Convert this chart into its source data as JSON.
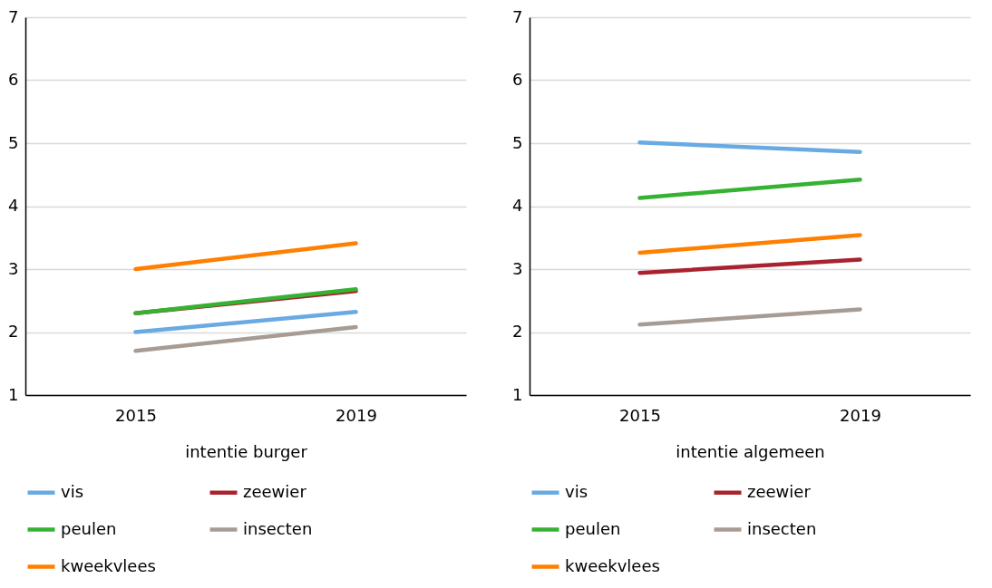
{
  "chart_data": [
    {
      "type": "line",
      "xlabel": "intentie burger",
      "categories": [
        "2015",
        "2019"
      ],
      "ylim": [
        1,
        7
      ],
      "yticks": [
        1,
        2,
        3,
        4,
        5,
        6,
        7
      ],
      "grid": "y",
      "legend": "bottom",
      "line_style": "solid",
      "marker": "none",
      "series": [
        {
          "name": "vis",
          "color": "#69aae3",
          "values": [
            2.0,
            2.32
          ]
        },
        {
          "name": "zeewier",
          "color": "#a8232f",
          "values": [
            2.3,
            2.65
          ]
        },
        {
          "name": "peulen",
          "color": "#36b233",
          "values": [
            2.3,
            2.68
          ]
        },
        {
          "name": "insecten",
          "color": "#a69c94",
          "values": [
            1.7,
            2.08
          ]
        },
        {
          "name": "kweekvlees",
          "color": "#ff7f00",
          "values": [
            3.0,
            3.41
          ]
        }
      ]
    },
    {
      "type": "line",
      "xlabel": "intentie algemeen",
      "categories": [
        "2015",
        "2019"
      ],
      "ylim": [
        1,
        7
      ],
      "yticks": [
        1,
        2,
        3,
        4,
        5,
        6,
        7
      ],
      "grid": "y",
      "legend": "bottom",
      "line_style": "solid",
      "marker": "none",
      "series": [
        {
          "name": "vis",
          "color": "#69aae3",
          "values": [
            5.01,
            4.86
          ]
        },
        {
          "name": "zeewier",
          "color": "#a8232f",
          "values": [
            2.94,
            3.15
          ]
        },
        {
          "name": "peulen",
          "color": "#36b233",
          "values": [
            4.13,
            4.42
          ]
        },
        {
          "name": "insecten",
          "color": "#a69c94",
          "values": [
            2.12,
            2.36
          ]
        },
        {
          "name": "kweekvlees",
          "color": "#ff7f00",
          "values": [
            3.26,
            3.54
          ]
        }
      ]
    }
  ]
}
